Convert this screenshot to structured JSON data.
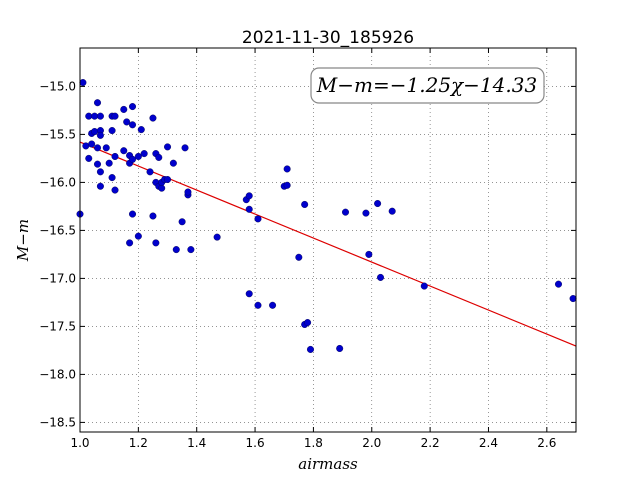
{
  "chart_data": {
    "type": "scatter",
    "title": "2021-11-30_185926",
    "xlabel": "airmass",
    "ylabel": "M−m",
    "annotation": "M−m=−1.25χ−14.33",
    "xlim": [
      1.0,
      2.7
    ],
    "ylim": [
      -18.6,
      -14.6
    ],
    "grid": true,
    "x_ticks": [
      "1.0",
      "1.2",
      "1.4",
      "1.6",
      "1.8",
      "2.0",
      "2.2",
      "2.4",
      "2.6"
    ],
    "y_ticks": [
      "−15.0",
      "−15.5",
      "−16.0",
      "−16.5",
      "−17.0",
      "−17.5",
      "−18.0",
      "−18.5"
    ],
    "colors": {
      "points": "#0000cc",
      "fit": "#dd0000"
    },
    "fit_line": {
      "slope": -1.25,
      "intercept": -14.33
    },
    "points": [
      [
        1.01,
        -14.96
      ],
      [
        1.0,
        -16.33
      ],
      [
        1.02,
        -15.62
      ],
      [
        1.03,
        -15.31
      ],
      [
        1.03,
        -15.75
      ],
      [
        1.04,
        -15.49
      ],
      [
        1.04,
        -15.6
      ],
      [
        1.05,
        -15.31
      ],
      [
        1.05,
        -15.47
      ],
      [
        1.06,
        -15.17
      ],
      [
        1.06,
        -15.64
      ],
      [
        1.06,
        -15.81
      ],
      [
        1.07,
        -15.31
      ],
      [
        1.07,
        -15.46
      ],
      [
        1.07,
        -15.51
      ],
      [
        1.07,
        -15.89
      ],
      [
        1.07,
        -16.04
      ],
      [
        1.09,
        -15.64
      ],
      [
        1.1,
        -15.8
      ],
      [
        1.11,
        -15.31
      ],
      [
        1.11,
        -15.46
      ],
      [
        1.11,
        -15.95
      ],
      [
        1.12,
        -15.31
      ],
      [
        1.12,
        -15.73
      ],
      [
        1.12,
        -16.08
      ],
      [
        1.15,
        -15.24
      ],
      [
        1.15,
        -15.67
      ],
      [
        1.16,
        -15.37
      ],
      [
        1.17,
        -15.72
      ],
      [
        1.17,
        -15.8
      ],
      [
        1.17,
        -16.63
      ],
      [
        1.18,
        -15.21
      ],
      [
        1.18,
        -15.4
      ],
      [
        1.18,
        -15.76
      ],
      [
        1.18,
        -16.33
      ],
      [
        1.2,
        -15.73
      ],
      [
        1.2,
        -16.56
      ],
      [
        1.21,
        -15.45
      ],
      [
        1.22,
        -15.7
      ],
      [
        1.24,
        -15.89
      ],
      [
        1.25,
        -15.33
      ],
      [
        1.25,
        -16.35
      ],
      [
        1.26,
        -15.7
      ],
      [
        1.26,
        -16.0
      ],
      [
        1.26,
        -16.63
      ],
      [
        1.27,
        -15.74
      ],
      [
        1.27,
        -16.04
      ],
      [
        1.28,
        -16.06
      ],
      [
        1.28,
        -16.0
      ],
      [
        1.29,
        -15.97
      ],
      [
        1.3,
        -15.63
      ],
      [
        1.3,
        -15.97
      ],
      [
        1.32,
        -15.8
      ],
      [
        1.33,
        -16.7
      ],
      [
        1.35,
        -16.41
      ],
      [
        1.36,
        -15.64
      ],
      [
        1.37,
        -16.13
      ],
      [
        1.37,
        -16.1
      ],
      [
        1.38,
        -16.7
      ],
      [
        1.47,
        -16.57
      ],
      [
        1.57,
        -16.18
      ],
      [
        1.58,
        -16.14
      ],
      [
        1.58,
        -16.28
      ],
      [
        1.58,
        -17.16
      ],
      [
        1.61,
        -16.38
      ],
      [
        1.61,
        -17.28
      ],
      [
        1.66,
        -17.28
      ],
      [
        1.7,
        -16.04
      ],
      [
        1.71,
        -16.03
      ],
      [
        1.71,
        -15.86
      ],
      [
        1.75,
        -16.78
      ],
      [
        1.77,
        -16.23
      ],
      [
        1.77,
        -17.48
      ],
      [
        1.78,
        -17.46
      ],
      [
        1.79,
        -17.74
      ],
      [
        1.89,
        -17.73
      ],
      [
        1.91,
        -16.31
      ],
      [
        1.98,
        -16.32
      ],
      [
        1.99,
        -16.75
      ],
      [
        2.02,
        -16.22
      ],
      [
        2.03,
        -16.99
      ],
      [
        2.07,
        -16.3
      ],
      [
        2.18,
        -17.08
      ],
      [
        2.64,
        -17.06
      ],
      [
        2.69,
        -17.21
      ]
    ]
  }
}
